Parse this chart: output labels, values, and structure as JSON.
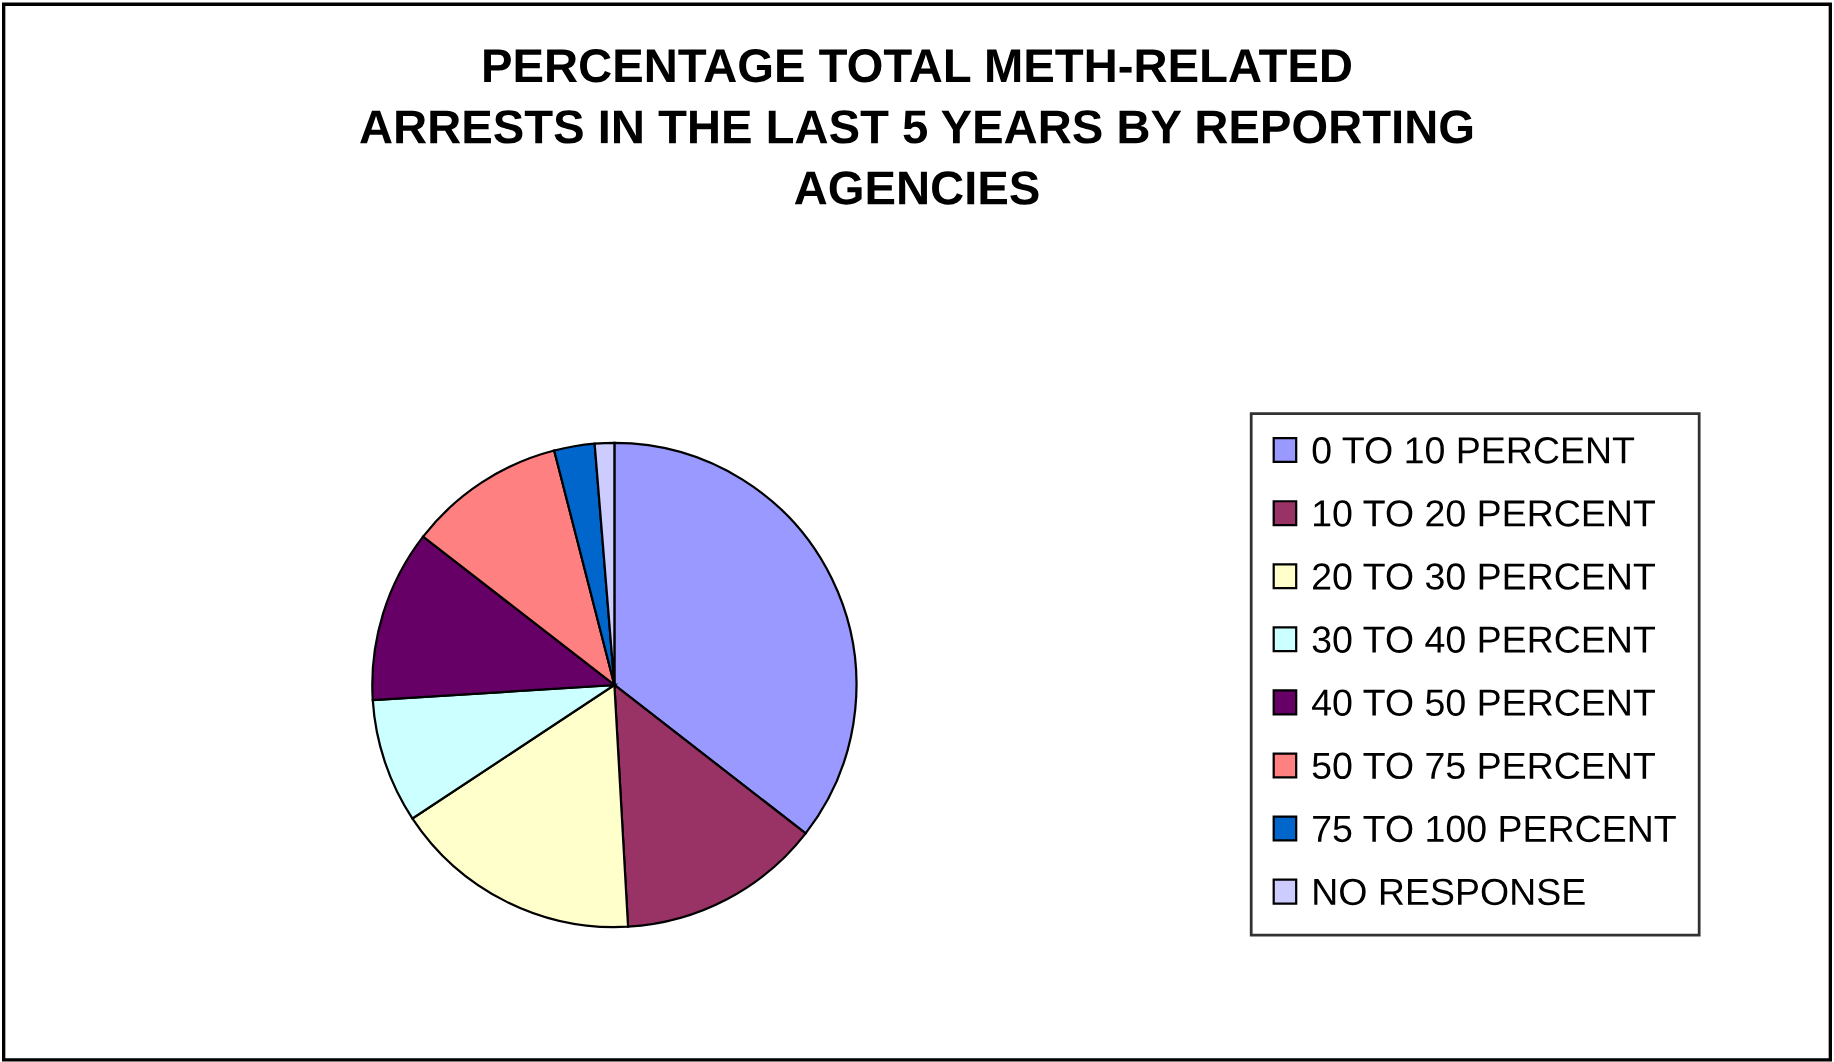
{
  "chart_data": {
    "type": "pie",
    "title": "PERCENTAGE TOTAL METH-RELATED\nARRESTS IN THE LAST 5 YEARS BY REPORTING\nAGENCIES",
    "categories": [
      "0 TO 10 PERCENT",
      "10 TO 20 PERCENT",
      "20 TO 30 PERCENT",
      "30 TO 40 PERCENT",
      "40 TO 50 PERCENT",
      "50 TO 75 PERCENT",
      "75 TO 100 PERCENT",
      "NO RESPONSE"
    ],
    "values": [
      35.5,
      13.6,
      16.6,
      8.3,
      11.5,
      10.5,
      2.7,
      1.3
    ],
    "colors": [
      "#9999ff",
      "#993366",
      "#ffffcc",
      "#ccffff",
      "#660066",
      "#ff8080",
      "#0066cc",
      "#ccccff"
    ],
    "legend": "right"
  }
}
